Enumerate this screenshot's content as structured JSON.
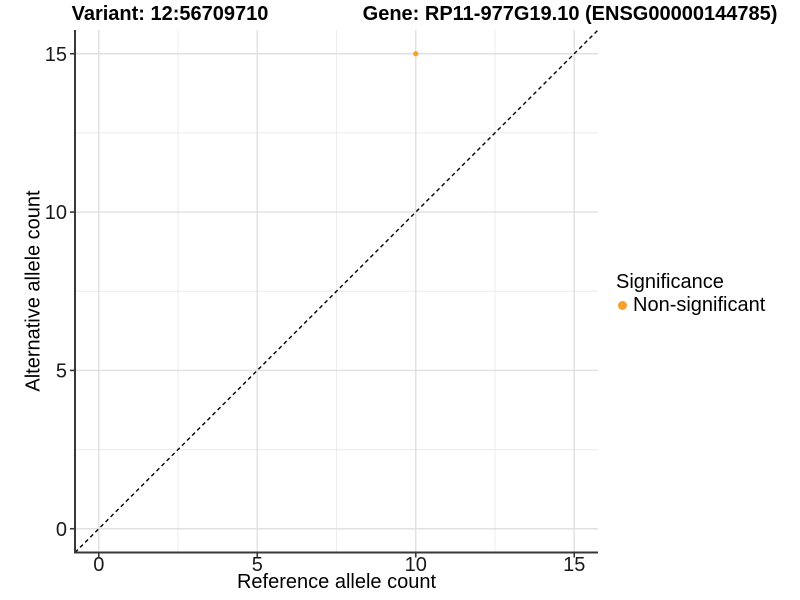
{
  "header": {
    "variant_title": "Variant: 12:56709710",
    "gene_title": "Gene: RP11-977G19.10 (ENSG00000144785)"
  },
  "chart_data": {
    "type": "scatter",
    "xlabel": "Reference allele count",
    "ylabel": "Alternative allele count",
    "xlim": [
      -0.75,
      15.75
    ],
    "ylim": [
      -0.75,
      15.75
    ],
    "xticks": [
      0,
      5,
      10,
      15
    ],
    "yticks": [
      0,
      5,
      10,
      15
    ],
    "xticks_minor": [
      2.5,
      7.5,
      12.5
    ],
    "yticks_minor": [
      2.5,
      7.5,
      12.5
    ],
    "grid": true,
    "series": [
      {
        "name": "Non-significant",
        "color": "#F9A02B",
        "points": [
          {
            "x": 10,
            "y": 15
          }
        ]
      }
    ],
    "reference_line": {
      "kind": "identity",
      "slope": 1,
      "intercept": 0,
      "style": "dashed",
      "color": "#000000"
    },
    "legend": {
      "position": "right",
      "title": "Significance",
      "entries": [
        {
          "label": "Non-significant",
          "color": "#F9A02B"
        }
      ]
    }
  },
  "colors": {
    "background": "#FFFFFF",
    "grid_major": "#E0E0E0",
    "grid_minor": "#ECECEC",
    "axis_line": "#383838",
    "tick_text": "#1A1A1A",
    "point": "#F9A02B"
  }
}
